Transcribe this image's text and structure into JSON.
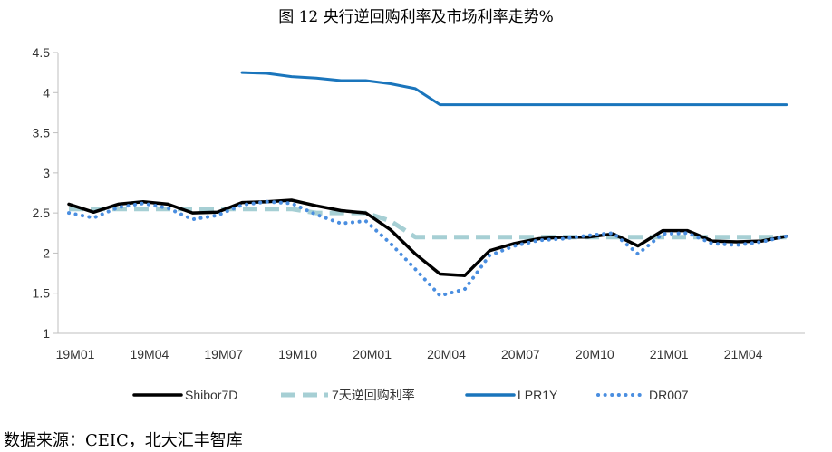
{
  "chart_data": {
    "type": "line",
    "title": "图 12 央行逆回购利率及市场利率走势%",
    "xlabel": "",
    "ylabel": "",
    "ylim": [
      1,
      4.5
    ],
    "yticks": [
      "1",
      "1.5",
      "2",
      "2.5",
      "3",
      "3.5",
      "4",
      "4.5"
    ],
    "x": [
      "19M01",
      "19M02",
      "19M03",
      "19M04",
      "19M05",
      "19M06",
      "19M07",
      "19M08",
      "19M09",
      "19M10",
      "19M11",
      "19M12",
      "20M01",
      "20M02",
      "20M03",
      "20M04",
      "20M05",
      "20M06",
      "20M07",
      "20M08",
      "20M09",
      "20M10",
      "20M11",
      "20M12",
      "21M01",
      "21M02",
      "21M03",
      "21M04",
      "21M05",
      "21M06"
    ],
    "xtick_labels": [
      "19M01",
      "19M04",
      "19M07",
      "19M10",
      "20M01",
      "20M04",
      "20M07",
      "20M10",
      "21M01",
      "21M04"
    ],
    "legend_position": "bottom",
    "grid": false,
    "series": [
      {
        "name": "Shibor7D",
        "color": "#000000",
        "style": "solid",
        "values": [
          2.61,
          2.51,
          2.61,
          2.64,
          2.61,
          2.5,
          2.51,
          2.63,
          2.64,
          2.66,
          2.59,
          2.53,
          2.5,
          2.29,
          1.99,
          1.74,
          1.72,
          2.03,
          2.12,
          2.18,
          2.2,
          2.2,
          2.24,
          2.09,
          2.28,
          2.28,
          2.15,
          2.14,
          2.15,
          2.21
        ]
      },
      {
        "name": "7天逆回购利率",
        "color": "#a6cfd4",
        "style": "dashed",
        "values": [
          2.55,
          2.55,
          2.55,
          2.55,
          2.55,
          2.55,
          2.55,
          2.55,
          2.55,
          2.55,
          2.5,
          2.5,
          2.5,
          2.4,
          2.2,
          2.2,
          2.2,
          2.2,
          2.2,
          2.2,
          2.2,
          2.2,
          2.2,
          2.2,
          2.2,
          2.2,
          2.2,
          2.2,
          2.2,
          2.2
        ]
      },
      {
        "name": "LPR1Y",
        "color": "#1a75bc",
        "style": "solid",
        "values": [
          null,
          null,
          null,
          null,
          null,
          null,
          null,
          4.25,
          4.24,
          4.2,
          4.18,
          4.15,
          4.15,
          4.11,
          4.05,
          3.85,
          3.85,
          3.85,
          3.85,
          3.85,
          3.85,
          3.85,
          3.85,
          3.85,
          3.85,
          3.85,
          3.85,
          3.85,
          3.85,
          3.85
        ]
      },
      {
        "name": "DR007",
        "color": "#4a8ee0",
        "style": "dotted",
        "values": [
          2.5,
          2.44,
          2.57,
          2.62,
          2.56,
          2.42,
          2.47,
          2.6,
          2.64,
          2.62,
          2.48,
          2.37,
          2.4,
          2.12,
          1.8,
          1.47,
          1.55,
          1.97,
          2.09,
          2.16,
          2.18,
          2.22,
          2.25,
          1.99,
          2.24,
          2.25,
          2.12,
          2.1,
          2.14,
          2.21
        ]
      }
    ]
  },
  "source_text": "数据来源：CEIC，北大汇丰智库"
}
